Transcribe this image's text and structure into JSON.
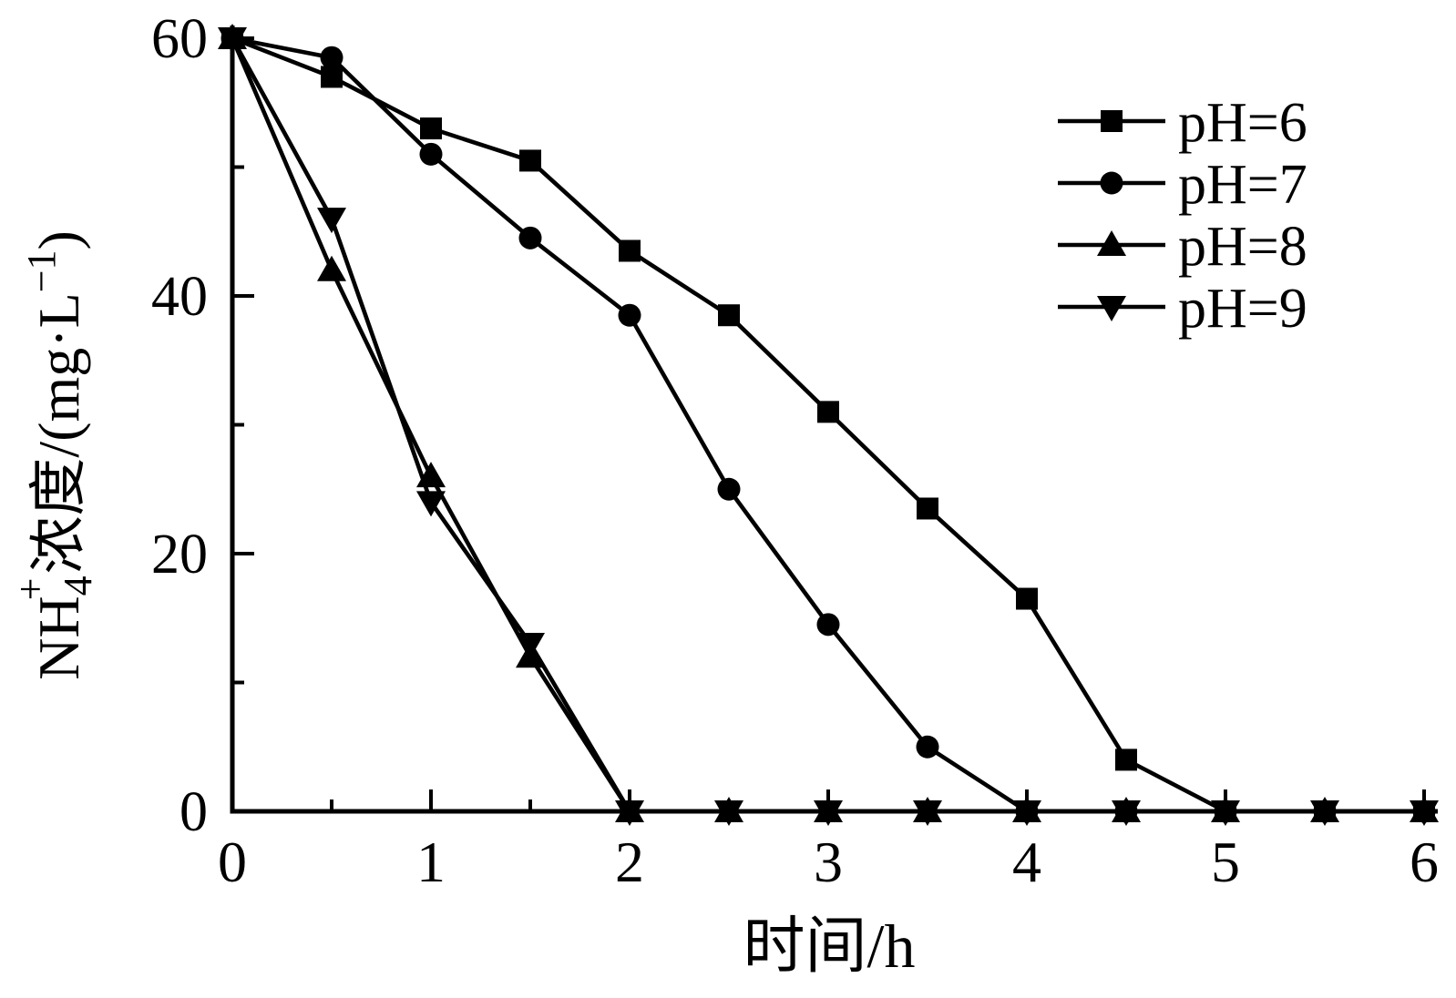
{
  "figure": {
    "background": "#ffffff",
    "ink_color": "#000000"
  },
  "chart_data": {
    "type": "line",
    "title": "",
    "xlabel": "时间/h",
    "ylabel": "NH4+浓度/(mg·L−1)",
    "ylabel_parts": {
      "prefix": "NH",
      "subscript": "4",
      "superscript": "+",
      "middle": "浓度/(mg·L",
      "exponent": "−1",
      "suffix": ")"
    },
    "xlim": [
      0,
      6
    ],
    "ylim": [
      0,
      60
    ],
    "grid": false,
    "legend_position": "upper right",
    "x_major_ticks": [
      0,
      1,
      2,
      3,
      4,
      5,
      6
    ],
    "x_tick_labels": [
      "0",
      "1",
      "2",
      "3",
      "4",
      "5",
      "6"
    ],
    "x_minor_ticks": [
      0.5,
      1.5,
      2.5,
      3.5,
      4.5,
      5.5
    ],
    "y_major_ticks": [
      0,
      20,
      40,
      60
    ],
    "y_tick_labels": [
      "0",
      "20",
      "40",
      "60"
    ],
    "y_minor_ticks": [
      10,
      30,
      50
    ],
    "x": [
      0,
      0.5,
      1,
      1.5,
      2,
      2.5,
      3,
      3.5,
      4,
      4.5,
      5,
      5.5,
      6
    ],
    "series": [
      {
        "name": "pH=6",
        "marker": "square",
        "values": [
          60,
          57,
          53,
          50.5,
          43.5,
          38.5,
          31,
          23.5,
          16.5,
          4,
          0,
          0,
          0
        ]
      },
      {
        "name": "pH=7",
        "marker": "circle",
        "values": [
          60,
          58.5,
          51,
          44.5,
          38.5,
          25,
          14.5,
          5,
          0,
          0,
          0,
          0,
          0
        ]
      },
      {
        "name": "pH=8",
        "marker": "triangle-up",
        "values": [
          60,
          42,
          26,
          12,
          0,
          0,
          0,
          0,
          0,
          0,
          0,
          0,
          0
        ]
      },
      {
        "name": "pH=9",
        "marker": "triangle-down",
        "values": [
          60,
          46,
          24,
          13,
          0,
          0,
          0,
          0,
          0,
          0,
          0,
          0,
          0
        ]
      }
    ]
  }
}
